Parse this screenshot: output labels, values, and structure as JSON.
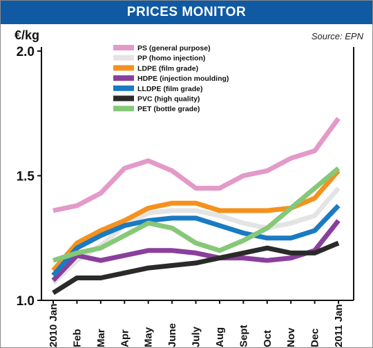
{
  "header": {
    "title": "PRICES MONITOR"
  },
  "axis": {
    "ylabel": "€/kg"
  },
  "source": "Source: EPN",
  "colors": {
    "title_bar": "#0f5aa3",
    "PS (general purpose)": "#e39ac8",
    "PP (homo injection)": "#e4e4e4",
    "LDPE (film grade)": "#f5911e",
    "HDPE (injection moulding)": "#8a3f9c",
    "LLDPE (film grade)": "#1a7ac2",
    "PVC (high quality)": "#2a2a2a",
    "PET (bottle grade)": "#86c878"
  },
  "chart_data": {
    "type": "line",
    "title": "PRICES MONITOR",
    "ylabel": "€/kg",
    "xlabel": "",
    "x": [
      "2010 Jan",
      "Feb",
      "Mar",
      "Apr",
      "May",
      "June",
      "July",
      "Aug",
      "Sept",
      "Oct",
      "Nov",
      "Dec",
      "2011 Jan"
    ],
    "ylim": [
      1.0,
      2.0
    ],
    "yticks": [
      "1.0",
      "1.5",
      "2.0"
    ],
    "grid": false,
    "legend_position": "top-left",
    "series": [
      {
        "name": "PS (general purpose)",
        "values": [
          1.36,
          1.38,
          1.43,
          1.53,
          1.56,
          1.52,
          1.45,
          1.45,
          1.5,
          1.52,
          1.57,
          1.6,
          1.73
        ]
      },
      {
        "name": "PP (homo injection)",
        "values": [
          1.07,
          1.16,
          1.22,
          1.3,
          1.35,
          1.36,
          1.36,
          1.34,
          1.31,
          1.29,
          1.31,
          1.34,
          1.45
        ]
      },
      {
        "name": "LDPE (film grade)",
        "values": [
          1.12,
          1.23,
          1.28,
          1.32,
          1.37,
          1.39,
          1.39,
          1.36,
          1.36,
          1.36,
          1.37,
          1.41,
          1.52
        ]
      },
      {
        "name": "HDPE (injection moulding)",
        "values": [
          1.08,
          1.18,
          1.16,
          1.18,
          1.2,
          1.2,
          1.19,
          1.17,
          1.17,
          1.16,
          1.17,
          1.2,
          1.32
        ]
      },
      {
        "name": "LLDPE (film grade)",
        "values": [
          1.1,
          1.21,
          1.26,
          1.3,
          1.32,
          1.33,
          1.33,
          1.3,
          1.27,
          1.25,
          1.25,
          1.28,
          1.38
        ]
      },
      {
        "name": "PVC (high quality)",
        "values": [
          1.03,
          1.09,
          1.09,
          1.11,
          1.13,
          1.14,
          1.15,
          1.17,
          1.19,
          1.21,
          1.19,
          1.19,
          1.23
        ]
      },
      {
        "name": "PET (bottle grade)",
        "values": [
          1.16,
          1.19,
          1.21,
          1.26,
          1.31,
          1.29,
          1.23,
          1.2,
          1.24,
          1.29,
          1.37,
          1.45,
          1.53
        ]
      }
    ],
    "source": "Source: EPN"
  }
}
